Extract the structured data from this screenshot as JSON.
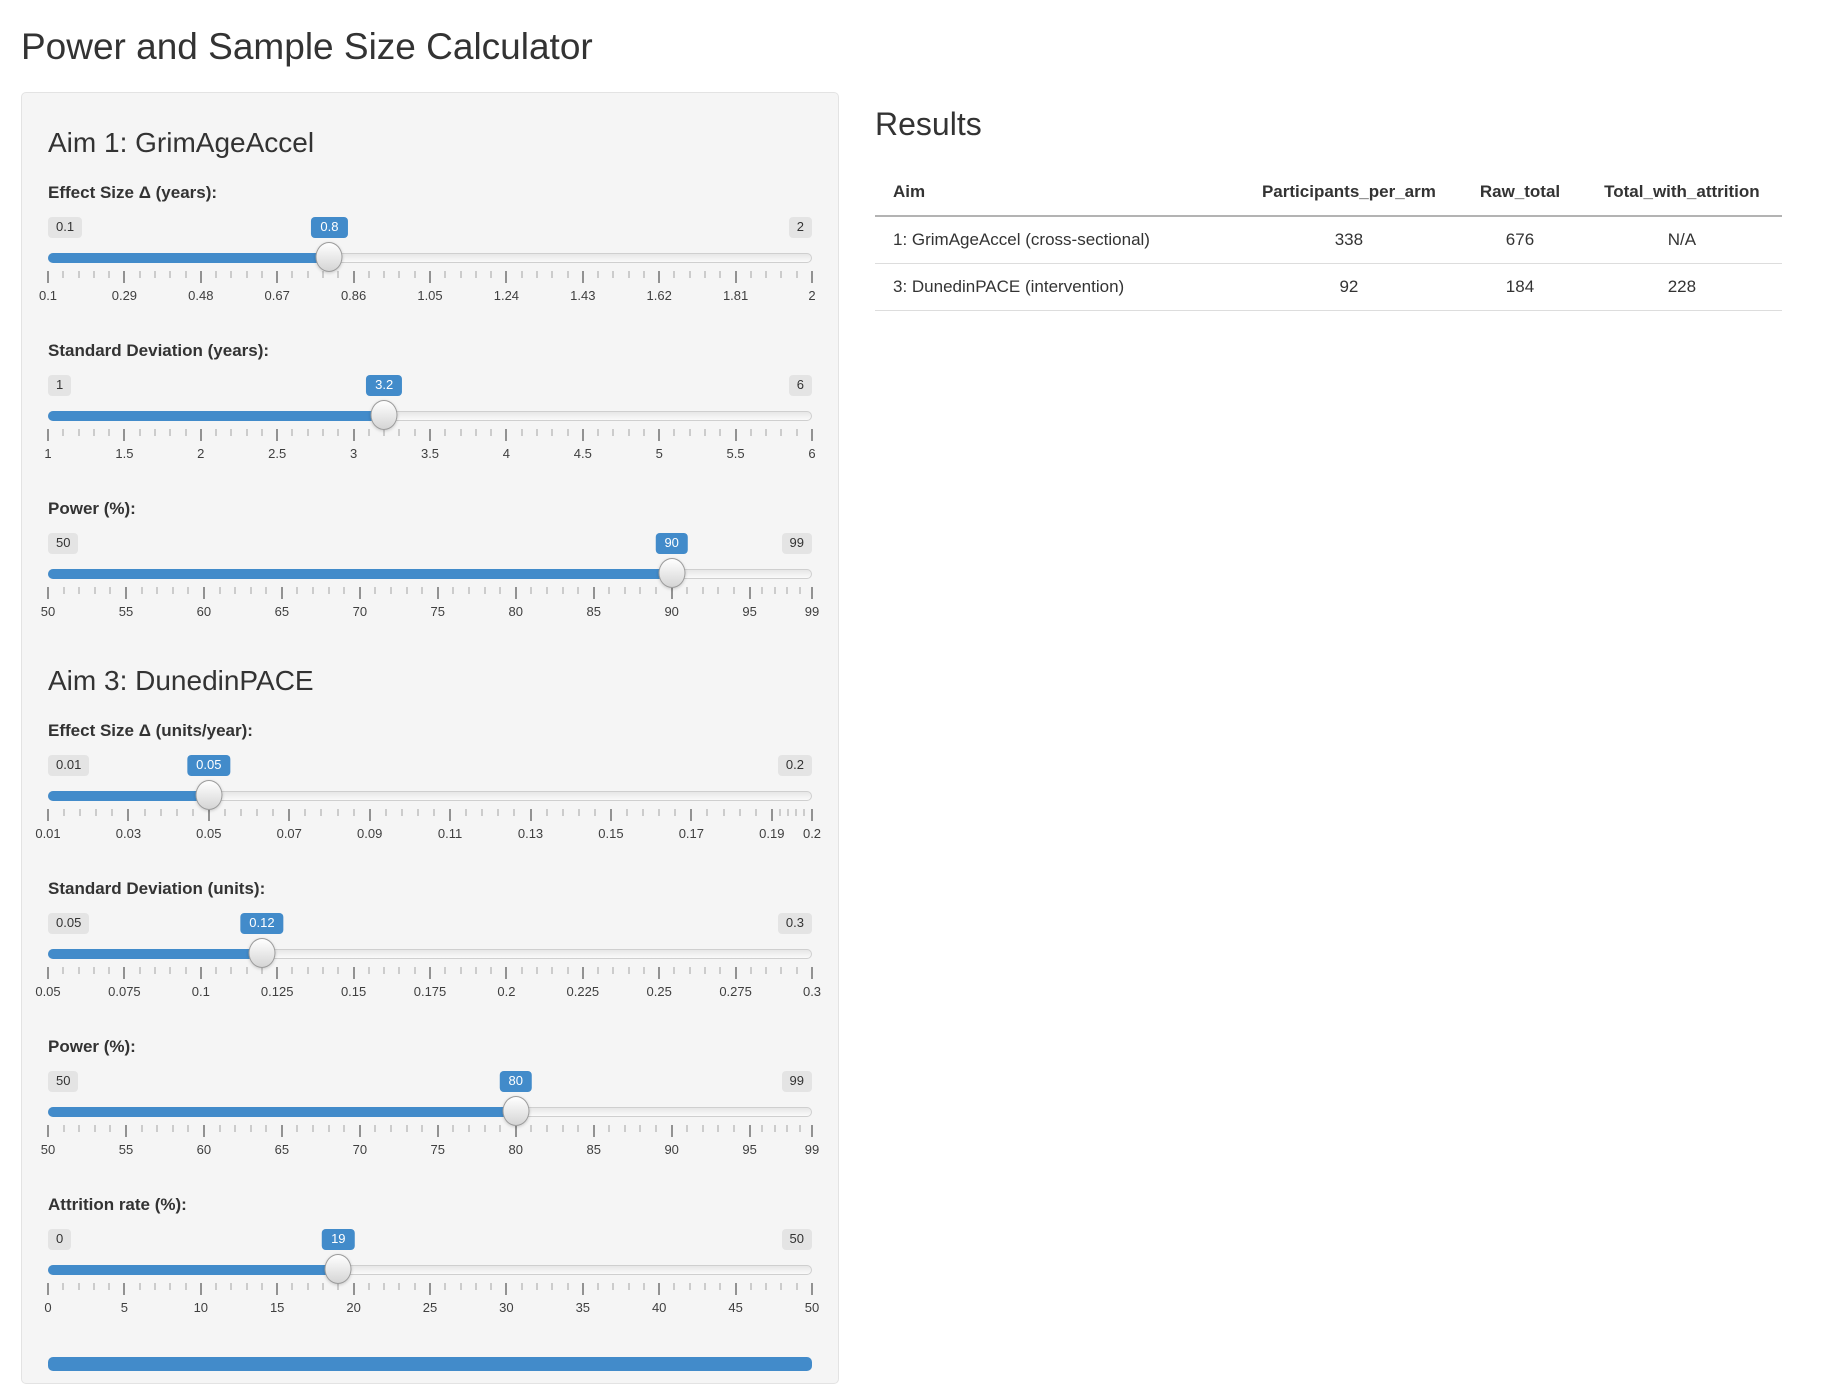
{
  "title": "Power and Sample Size Calculator",
  "colors": {
    "accent": "#428bca",
    "panel_bg": "#f5f5f5"
  },
  "sidebar": {
    "sections": [
      {
        "id": "aim1",
        "heading": "Aim 1: GrimAgeAccel",
        "sliders": [
          {
            "id": "effect-size-years",
            "label": "Effect Size Δ (years):",
            "min": "0.1",
            "max": "2",
            "value": "0.8",
            "min_num": 0.1,
            "max_num": 2,
            "value_num": 0.8,
            "grid": [
              {
                "v": 0.1,
                "t": "0.1"
              },
              {
                "v": 0.29,
                "t": "0.29"
              },
              {
                "v": 0.48,
                "t": "0.48"
              },
              {
                "v": 0.67,
                "t": "0.67"
              },
              {
                "v": 0.86,
                "t": "0.86"
              },
              {
                "v": 1.05,
                "t": "1.05"
              },
              {
                "v": 1.24,
                "t": "1.24"
              },
              {
                "v": 1.43,
                "t": "1.43"
              },
              {
                "v": 1.62,
                "t": "1.62"
              },
              {
                "v": 1.81,
                "t": "1.81"
              },
              {
                "v": 2,
                "t": "2"
              }
            ]
          },
          {
            "id": "sd-years",
            "label": "Standard Deviation (years):",
            "min": "1",
            "max": "6",
            "value": "3.2",
            "min_num": 1,
            "max_num": 6,
            "value_num": 3.2,
            "grid": [
              {
                "v": 1,
                "t": "1"
              },
              {
                "v": 1.5,
                "t": "1.5"
              },
              {
                "v": 2,
                "t": "2"
              },
              {
                "v": 2.5,
                "t": "2.5"
              },
              {
                "v": 3,
                "t": "3"
              },
              {
                "v": 3.5,
                "t": "3.5"
              },
              {
                "v": 4,
                "t": "4"
              },
              {
                "v": 4.5,
                "t": "4.5"
              },
              {
                "v": 5,
                "t": "5"
              },
              {
                "v": 5.5,
                "t": "5.5"
              },
              {
                "v": 6,
                "t": "6"
              }
            ]
          },
          {
            "id": "power-aim1",
            "label": "Power (%):",
            "min": "50",
            "max": "99",
            "value": "90",
            "min_num": 50,
            "max_num": 99,
            "value_num": 90,
            "grid": [
              {
                "v": 50,
                "t": "50"
              },
              {
                "v": 55,
                "t": "55"
              },
              {
                "v": 60,
                "t": "60"
              },
              {
                "v": 65,
                "t": "65"
              },
              {
                "v": 70,
                "t": "70"
              },
              {
                "v": 75,
                "t": "75"
              },
              {
                "v": 80,
                "t": "80"
              },
              {
                "v": 85,
                "t": "85"
              },
              {
                "v": 90,
                "t": "90"
              },
              {
                "v": 95,
                "t": "95"
              },
              {
                "v": 99,
                "t": "99"
              }
            ]
          }
        ]
      },
      {
        "id": "aim3",
        "heading": "Aim 3: DunedinPACE",
        "sliders": [
          {
            "id": "effect-size-units-year",
            "label": "Effect Size Δ (units/year):",
            "min": "0.01",
            "max": "0.2",
            "value": "0.05",
            "min_num": 0.01,
            "max_num": 0.2,
            "value_num": 0.05,
            "grid": [
              {
                "v": 0.01,
                "t": "0.01"
              },
              {
                "v": 0.03,
                "t": "0.03"
              },
              {
                "v": 0.05,
                "t": "0.05"
              },
              {
                "v": 0.07,
                "t": "0.07"
              },
              {
                "v": 0.09,
                "t": "0.09"
              },
              {
                "v": 0.11,
                "t": "0.11"
              },
              {
                "v": 0.13,
                "t": "0.13"
              },
              {
                "v": 0.15,
                "t": "0.15"
              },
              {
                "v": 0.17,
                "t": "0.17"
              },
              {
                "v": 0.19,
                "t": "0.19"
              },
              {
                "v": 0.2,
                "t": "0.2"
              }
            ]
          },
          {
            "id": "sd-units",
            "label": "Standard Deviation (units):",
            "min": "0.05",
            "max": "0.3",
            "value": "0.12",
            "min_num": 0.05,
            "max_num": 0.3,
            "value_num": 0.12,
            "grid": [
              {
                "v": 0.05,
                "t": "0.05"
              },
              {
                "v": 0.075,
                "t": "0.075"
              },
              {
                "v": 0.1,
                "t": "0.1"
              },
              {
                "v": 0.125,
                "t": "0.125"
              },
              {
                "v": 0.15,
                "t": "0.15"
              },
              {
                "v": 0.175,
                "t": "0.175"
              },
              {
                "v": 0.2,
                "t": "0.2"
              },
              {
                "v": 0.225,
                "t": "0.225"
              },
              {
                "v": 0.25,
                "t": "0.25"
              },
              {
                "v": 0.275,
                "t": "0.275"
              },
              {
                "v": 0.3,
                "t": "0.3"
              }
            ]
          },
          {
            "id": "power-aim3",
            "label": "Power (%):",
            "min": "50",
            "max": "99",
            "value": "80",
            "min_num": 50,
            "max_num": 99,
            "value_num": 80,
            "grid": [
              {
                "v": 50,
                "t": "50"
              },
              {
                "v": 55,
                "t": "55"
              },
              {
                "v": 60,
                "t": "60"
              },
              {
                "v": 65,
                "t": "65"
              },
              {
                "v": 70,
                "t": "70"
              },
              {
                "v": 75,
                "t": "75"
              },
              {
                "v": 80,
                "t": "80"
              },
              {
                "v": 85,
                "t": "85"
              },
              {
                "v": 90,
                "t": "90"
              },
              {
                "v": 95,
                "t": "95"
              },
              {
                "v": 99,
                "t": "99"
              }
            ]
          },
          {
            "id": "attrition-rate",
            "label": "Attrition rate (%):",
            "min": "0",
            "max": "50",
            "value": "19",
            "min_num": 0,
            "max_num": 50,
            "value_num": 19,
            "grid": [
              {
                "v": 0,
                "t": "0"
              },
              {
                "v": 5,
                "t": "5"
              },
              {
                "v": 10,
                "t": "10"
              },
              {
                "v": 15,
                "t": "15"
              },
              {
                "v": 20,
                "t": "20"
              },
              {
                "v": 25,
                "t": "25"
              },
              {
                "v": 30,
                "t": "30"
              },
              {
                "v": 35,
                "t": "35"
              },
              {
                "v": 40,
                "t": "40"
              },
              {
                "v": 45,
                "t": "45"
              },
              {
                "v": 50,
                "t": "50"
              }
            ]
          }
        ]
      }
    ]
  },
  "results": {
    "title": "Results",
    "table": {
      "columns": [
        "Aim",
        "Participants_per_arm",
        "Raw_total",
        "Total_with_attrition"
      ],
      "rows": [
        [
          "1: GrimAgeAccel (cross-sectional)",
          "338",
          "676",
          "N/A"
        ],
        [
          "3: DunedinPACE (intervention)",
          "92",
          "184",
          "228"
        ]
      ]
    }
  }
}
